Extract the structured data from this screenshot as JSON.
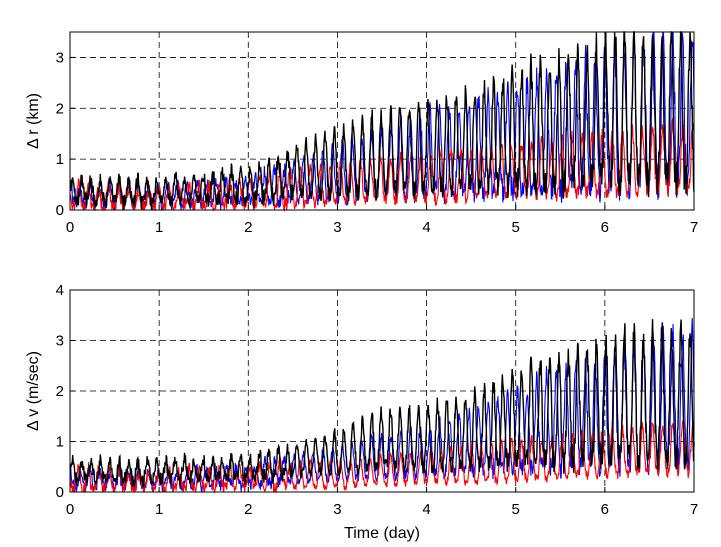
{
  "colors": {
    "series_a": "#000000",
    "series_b": "#0000ff",
    "series_c": "#ff0000",
    "grid": "#000000"
  },
  "chart_data": [
    {
      "type": "line",
      "ylabel": "Δ r  (km)",
      "xlabel": "",
      "xlim": [
        0,
        7
      ],
      "ylim": [
        0,
        3.5
      ],
      "xticks": [
        "0",
        "1",
        "2",
        "3",
        "4",
        "5",
        "6",
        "7"
      ],
      "yticks": [
        "0",
        "1",
        "2",
        "3"
      ],
      "grid": true,
      "series": [
        {
          "color": "#000000",
          "envelope_x": [
            0,
            1,
            2,
            2.5,
            3,
            3.5,
            4,
            4.5,
            5,
            5.5,
            6,
            6.5,
            7
          ],
          "high": [
            0.6,
            0.6,
            0.8,
            1.2,
            1.6,
            1.9,
            2.1,
            2.3,
            2.7,
            3.0,
            3.3,
            3.5,
            3.5
          ],
          "low": [
            0.2,
            0.15,
            0.2,
            0.3,
            0.3,
            0.4,
            0.4,
            0.5,
            0.5,
            0.5,
            0.6,
            0.6,
            0.6
          ]
        },
        {
          "color": "#0000ff",
          "envelope_x": [
            0,
            1,
            2,
            2.5,
            3,
            3.5,
            4,
            4.5,
            5,
            5.5,
            6,
            6.5,
            7
          ],
          "high": [
            0.5,
            0.5,
            0.6,
            0.9,
            1.3,
            1.6,
            1.9,
            2.1,
            2.4,
            2.8,
            3.1,
            3.4,
            3.5
          ],
          "low": [
            0.1,
            0.1,
            0.15,
            0.2,
            0.2,
            0.3,
            0.3,
            0.35,
            0.4,
            0.4,
            0.45,
            0.5,
            0.5
          ]
        },
        {
          "color": "#ff0000",
          "envelope_x": [
            0,
            1,
            2,
            2.5,
            3,
            3.5,
            4,
            4.5,
            5,
            5.5,
            6,
            6.5,
            7
          ],
          "high": [
            0.5,
            0.4,
            0.6,
            0.8,
            0.9,
            1.0,
            1.1,
            1.2,
            1.3,
            1.4,
            1.5,
            1.6,
            1.7
          ],
          "low": [
            0.05,
            0.05,
            0.1,
            0.1,
            0.15,
            0.2,
            0.2,
            0.25,
            0.3,
            0.3,
            0.35,
            0.4,
            0.4
          ]
        }
      ]
    },
    {
      "type": "line",
      "ylabel": "Δ v  (m/sec)",
      "xlabel": "Time (day)",
      "xlim": [
        0,
        7
      ],
      "ylim": [
        0,
        4
      ],
      "xticks": [
        "0",
        "1",
        "2",
        "3",
        "4",
        "5",
        "6",
        "7"
      ],
      "yticks": [
        "0",
        "1",
        "2",
        "3",
        "4"
      ],
      "grid": true,
      "series": [
        {
          "color": "#000000",
          "envelope_x": [
            0,
            1,
            2,
            2.5,
            3,
            3.5,
            4,
            4.5,
            5,
            5.5,
            6,
            6.5,
            7
          ],
          "high": [
            0.6,
            0.6,
            0.7,
            0.9,
            1.2,
            1.6,
            1.7,
            1.9,
            2.4,
            2.7,
            3.0,
            3.2,
            3.2
          ],
          "low": [
            0.25,
            0.25,
            0.3,
            0.35,
            0.4,
            0.5,
            0.5,
            0.55,
            0.6,
            0.6,
            0.65,
            0.7,
            0.7
          ]
        },
        {
          "color": "#0000ff",
          "envelope_x": [
            0,
            1,
            2,
            2.5,
            3,
            3.5,
            4,
            4.5,
            5,
            5.5,
            6,
            6.5,
            7
          ],
          "high": [
            0.4,
            0.4,
            0.5,
            0.7,
            0.9,
            1.1,
            1.3,
            1.6,
            2.0,
            2.4,
            2.7,
            3.0,
            3.2
          ],
          "low": [
            0.1,
            0.1,
            0.15,
            0.2,
            0.25,
            0.3,
            0.35,
            0.4,
            0.45,
            0.5,
            0.55,
            0.6,
            0.6
          ]
        },
        {
          "color": "#ff0000",
          "envelope_x": [
            0,
            1,
            2,
            2.5,
            3,
            3.5,
            4,
            4.5,
            5,
            5.5,
            6,
            6.5,
            7
          ],
          "high": [
            0.5,
            0.4,
            0.5,
            0.6,
            0.6,
            0.7,
            0.8,
            0.9,
            1.0,
            1.1,
            1.2,
            1.3,
            1.4
          ],
          "low": [
            0.05,
            0.05,
            0.1,
            0.1,
            0.1,
            0.15,
            0.2,
            0.2,
            0.25,
            0.3,
            0.35,
            0.4,
            0.4
          ]
        }
      ]
    }
  ]
}
